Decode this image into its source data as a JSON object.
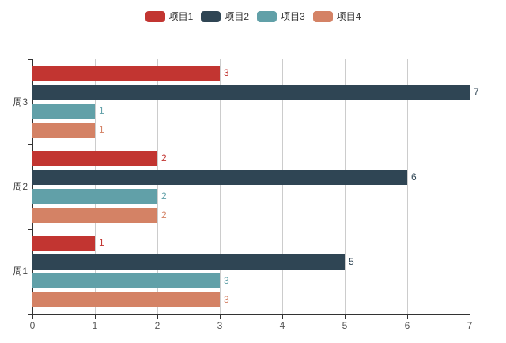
{
  "chart_data": {
    "type": "bar",
    "orientation": "horizontal",
    "title": "",
    "xlabel": "",
    "ylabel": "",
    "xlim": [
      0,
      7
    ],
    "x_ticks": [
      0,
      1,
      2,
      3,
      4,
      5,
      6,
      7
    ],
    "grid": true,
    "legend_position": "top-center",
    "categories": [
      "周3",
      "周2",
      "周1"
    ],
    "series": [
      {
        "name": "项目1",
        "color": "#c23531",
        "values": [
          3,
          2,
          1
        ]
      },
      {
        "name": "项目2",
        "color": "#2f4554",
        "values": [
          7,
          6,
          5
        ]
      },
      {
        "name": "项目3",
        "color": "#61a0a8",
        "values": [
          1,
          2,
          3
        ]
      },
      {
        "name": "项目4",
        "color": "#d48265",
        "values": [
          1,
          2,
          3
        ]
      }
    ],
    "value_labels": "end-of-bar, colored per series",
    "colors": {
      "gridline": "#cccccc",
      "axis_line": "#333333",
      "axis_label": "#555555",
      "legend_text": "#333333",
      "background": "#ffffff"
    }
  }
}
